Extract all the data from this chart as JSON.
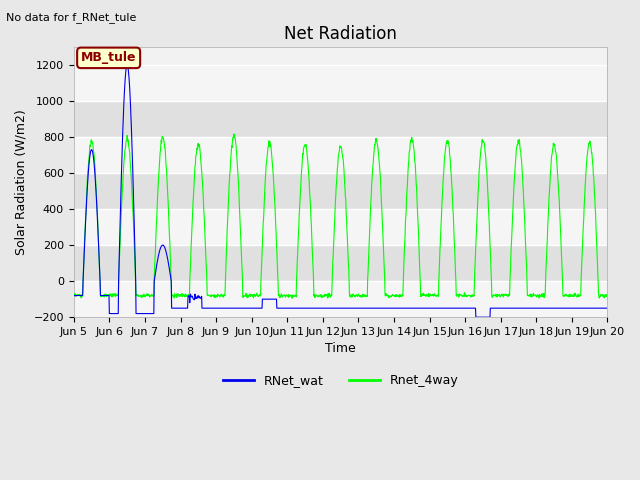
{
  "title": "Net Radiation",
  "ylabel": "Solar Radiation (W/m2)",
  "xlabel": "Time",
  "ylim": [
    -200,
    1300
  ],
  "yticks": [
    -200,
    0,
    200,
    400,
    600,
    800,
    1000,
    1200
  ],
  "annotation_text": "No data for f_RNet_tule",
  "annotation_box_text": "MB_tule",
  "annotation_box_color": "#ffffcc",
  "annotation_box_edgecolor": "#8B0000",
  "annotation_text_color": "#8B0000",
  "legend_labels": [
    "RNet_wat",
    "Rnet_4way"
  ],
  "line_blue_color": "#0000ee",
  "line_green_color": "#00ff00",
  "bg_color": "#e8e8e8",
  "plot_bg_color": "#f2f2f2",
  "grid_color": "#cccccc",
  "band_color_light": "#f5f5f5",
  "band_color_dark": "#e0e0e0",
  "title_fontsize": 12,
  "label_fontsize": 9,
  "tick_fontsize": 8,
  "xtick_labels": [
    "Jun 5",
    "Jun 6",
    "Jun 7",
    "Jun 8",
    "Jun 9",
    "Jun 10",
    "Jun 11",
    "Jun 12",
    "Jun 13",
    "Jun 14",
    "Jun 15",
    "Jun 16",
    "Jun 17",
    "Jun 18",
    "Jun 19",
    "Jun 20"
  ]
}
